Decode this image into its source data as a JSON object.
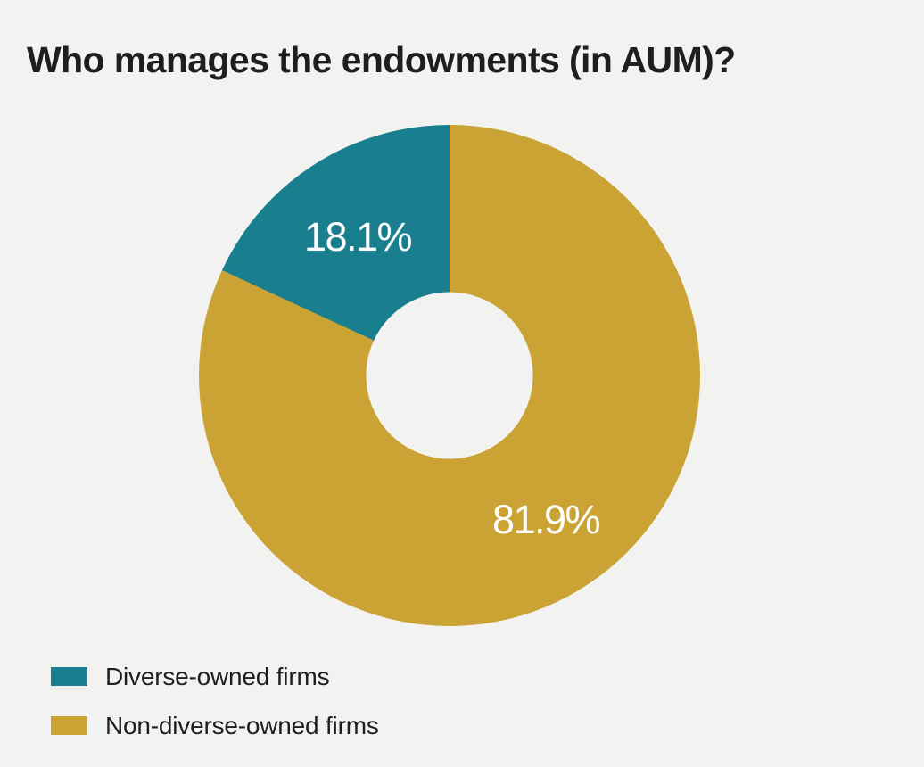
{
  "page": {
    "background_color": "#f2f2f1"
  },
  "chart_data": {
    "type": "pie",
    "subtype": "donut",
    "title": "Who manages the endowments (in AUM)?",
    "categories": [
      "Diverse-owned firms",
      "Non-diverse-owned firms"
    ],
    "values": [
      18.1,
      81.9
    ],
    "unit": "%",
    "slice_labels": [
      "18.1%",
      "81.9%"
    ],
    "colors": [
      "#197f8e",
      "#cba334"
    ],
    "slice_label_color": "#ffffff",
    "title_color": "#1e1e1c",
    "legend_text_color": "#1e1e1c",
    "donut_hole_ratio": 0.33,
    "start_angle": "12 o'clock; large slice sweeps clockwise, small slice fills remainder on upper left",
    "legend_position": "bottom-left",
    "grid": false
  },
  "legend": {
    "items": [
      {
        "label": "Diverse-owned firms",
        "color": "#197f8e"
      },
      {
        "label": "Non-diverse-owned firms",
        "color": "#cba334"
      }
    ]
  }
}
